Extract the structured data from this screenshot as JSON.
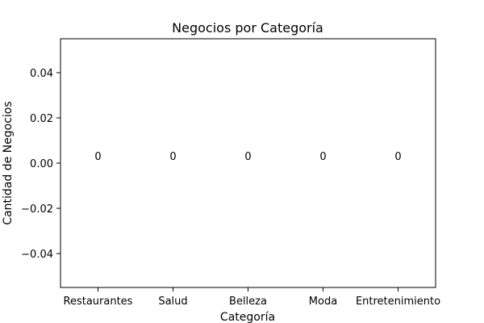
{
  "chart_data": {
    "type": "bar",
    "title": "Negocios por Categoría",
    "xlabel": "Categoría",
    "ylabel": "Cantidad de Negocios",
    "categories": [
      "Restaurantes",
      "Salud",
      "Belleza",
      "Moda",
      "Entretenimiento"
    ],
    "values": [
      0,
      0,
      0,
      0,
      0
    ],
    "data_labels": [
      "0",
      "0",
      "0",
      "0",
      "0"
    ],
    "ylim": [
      -0.055,
      0.055
    ],
    "yticks": [
      -0.04,
      -0.02,
      0.0,
      0.02,
      0.04
    ],
    "ytick_labels": [
      "−0.04",
      "−0.02",
      "0.00",
      "0.02",
      "0.04"
    ],
    "grid": false,
    "colors": {
      "frame": "#000000",
      "background": "#ffffff",
      "text": "#000000"
    }
  }
}
